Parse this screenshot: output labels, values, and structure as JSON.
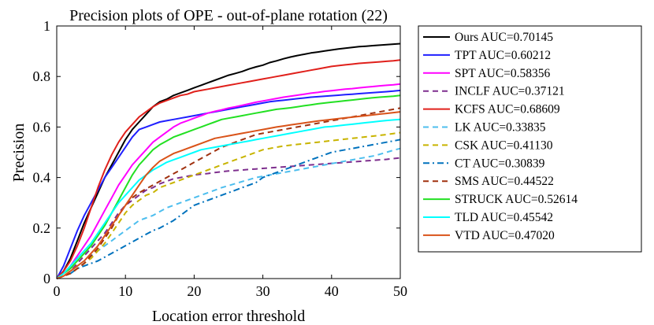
{
  "chart_data": {
    "type": "line",
    "title": "Precision plots of OPE - out-of-plane rotation (22)",
    "xlabel": "Location error threshold",
    "ylabel": "Precision",
    "xlim": [
      0,
      50
    ],
    "ylim": [
      0,
      1
    ],
    "xticks": [
      "0",
      "10",
      "20",
      "30",
      "40",
      "50"
    ],
    "yticks": [
      "0",
      "0.2",
      "0.4",
      "0.6",
      "0.8",
      "1"
    ],
    "legend_position": "outside-right",
    "x": [
      0,
      1,
      2,
      3,
      4,
      5,
      6,
      7,
      8,
      9,
      10,
      11,
      12,
      13,
      14,
      15,
      16,
      17,
      18,
      19,
      20,
      21,
      22,
      23,
      24,
      25,
      26,
      27,
      28,
      29,
      30,
      31,
      32,
      33,
      34,
      35,
      36,
      37,
      38,
      39,
      40,
      41,
      42,
      43,
      44,
      45,
      46,
      47,
      48,
      49,
      50
    ],
    "series": [
      {
        "name": "Ours",
        "label": "Ours AUC=0.70145",
        "color": "#000000",
        "dash": "solid",
        "values": [
          0.0,
          0.03,
          0.08,
          0.15,
          0.22,
          0.28,
          0.34,
          0.4,
          0.45,
          0.5,
          0.55,
          0.59,
          0.62,
          0.65,
          0.68,
          0.7,
          0.71,
          0.725,
          0.735,
          0.745,
          0.755,
          0.765,
          0.775,
          0.785,
          0.795,
          0.805,
          0.812,
          0.82,
          0.83,
          0.838,
          0.845,
          0.855,
          0.862,
          0.87,
          0.877,
          0.883,
          0.888,
          0.893,
          0.897,
          0.901,
          0.905,
          0.909,
          0.912,
          0.915,
          0.918,
          0.92,
          0.922,
          0.924,
          0.926,
          0.928,
          0.93
        ]
      },
      {
        "name": "TPT",
        "label": "TPT AUC=0.60212",
        "color": "#1f1fff",
        "dash": "solid",
        "values": [
          0.0,
          0.05,
          0.12,
          0.19,
          0.25,
          0.3,
          0.35,
          0.4,
          0.44,
          0.48,
          0.52,
          0.56,
          0.59,
          0.6,
          0.61,
          0.62,
          0.625,
          0.63,
          0.635,
          0.64,
          0.645,
          0.65,
          0.655,
          0.66,
          0.665,
          0.67,
          0.675,
          0.68,
          0.685,
          0.69,
          0.695,
          0.7,
          0.703,
          0.706,
          0.709,
          0.712,
          0.715,
          0.718,
          0.72,
          0.722,
          0.724,
          0.726,
          0.728,
          0.73,
          0.732,
          0.734,
          0.736,
          0.738,
          0.74,
          0.742,
          0.745
        ]
      },
      {
        "name": "SPT",
        "label": "SPT AUC=0.58356",
        "color": "#ff00ff",
        "dash": "solid",
        "values": [
          0.0,
          0.02,
          0.05,
          0.09,
          0.13,
          0.17,
          0.22,
          0.27,
          0.32,
          0.37,
          0.41,
          0.45,
          0.48,
          0.51,
          0.54,
          0.56,
          0.58,
          0.6,
          0.615,
          0.625,
          0.635,
          0.645,
          0.655,
          0.662,
          0.668,
          0.675,
          0.68,
          0.686,
          0.692,
          0.698,
          0.703,
          0.708,
          0.713,
          0.718,
          0.722,
          0.726,
          0.73,
          0.734,
          0.737,
          0.741,
          0.744,
          0.747,
          0.75,
          0.752,
          0.755,
          0.758,
          0.76,
          0.763,
          0.765,
          0.767,
          0.77
        ]
      },
      {
        "name": "INCLF",
        "label": "INCLF AUC=0.37121",
        "color": "#7e2f8e",
        "dash": "dash",
        "values": [
          0.0,
          0.01,
          0.03,
          0.06,
          0.09,
          0.12,
          0.15,
          0.18,
          0.22,
          0.26,
          0.29,
          0.31,
          0.33,
          0.35,
          0.36,
          0.375,
          0.385,
          0.395,
          0.4,
          0.405,
          0.41,
          0.413,
          0.416,
          0.42,
          0.423,
          0.426,
          0.428,
          0.43,
          0.432,
          0.434,
          0.436,
          0.438,
          0.44,
          0.442,
          0.444,
          0.446,
          0.448,
          0.45,
          0.452,
          0.454,
          0.456,
          0.458,
          0.46,
          0.462,
          0.464,
          0.466,
          0.468,
          0.47,
          0.472,
          0.475,
          0.478
        ]
      },
      {
        "name": "KCFS",
        "label": "KCFS AUC=0.68609",
        "color": "#e0201b",
        "dash": "solid",
        "values": [
          0.0,
          0.03,
          0.07,
          0.13,
          0.2,
          0.28,
          0.36,
          0.43,
          0.49,
          0.54,
          0.58,
          0.61,
          0.64,
          0.66,
          0.68,
          0.695,
          0.705,
          0.715,
          0.725,
          0.73,
          0.74,
          0.745,
          0.75,
          0.755,
          0.76,
          0.765,
          0.77,
          0.775,
          0.78,
          0.785,
          0.79,
          0.795,
          0.8,
          0.805,
          0.81,
          0.815,
          0.82,
          0.825,
          0.83,
          0.835,
          0.84,
          0.843,
          0.846,
          0.849,
          0.852,
          0.854,
          0.856,
          0.858,
          0.86,
          0.862,
          0.865
        ]
      },
      {
        "name": "LK",
        "label": "LK AUC=0.33835",
        "color": "#4dbeee",
        "dash": "dash",
        "values": [
          0.0,
          0.01,
          0.03,
          0.05,
          0.07,
          0.09,
          0.11,
          0.13,
          0.15,
          0.17,
          0.19,
          0.21,
          0.23,
          0.24,
          0.25,
          0.265,
          0.28,
          0.29,
          0.3,
          0.31,
          0.32,
          0.33,
          0.34,
          0.35,
          0.36,
          0.368,
          0.376,
          0.384,
          0.392,
          0.4,
          0.405,
          0.41,
          0.415,
          0.42,
          0.425,
          0.43,
          0.435,
          0.44,
          0.445,
          0.45,
          0.455,
          0.46,
          0.465,
          0.47,
          0.475,
          0.48,
          0.485,
          0.492,
          0.5,
          0.508,
          0.515
        ]
      },
      {
        "name": "CSK",
        "label": "CSK AUC=0.41130",
        "color": "#c8b400",
        "dash": "dash",
        "values": [
          0.0,
          0.01,
          0.02,
          0.04,
          0.06,
          0.08,
          0.11,
          0.14,
          0.18,
          0.22,
          0.26,
          0.29,
          0.31,
          0.33,
          0.34,
          0.36,
          0.37,
          0.38,
          0.39,
          0.4,
          0.41,
          0.42,
          0.43,
          0.44,
          0.45,
          0.46,
          0.47,
          0.48,
          0.49,
          0.5,
          0.51,
          0.515,
          0.52,
          0.525,
          0.528,
          0.531,
          0.534,
          0.537,
          0.54,
          0.543,
          0.546,
          0.549,
          0.552,
          0.555,
          0.558,
          0.561,
          0.564,
          0.567,
          0.57,
          0.574,
          0.578
        ]
      },
      {
        "name": "CT",
        "label": "CT AUC=0.30839",
        "color": "#0072bd",
        "dash": "dashdot",
        "values": [
          0.0,
          0.01,
          0.02,
          0.04,
          0.05,
          0.06,
          0.07,
          0.085,
          0.1,
          0.115,
          0.13,
          0.145,
          0.16,
          0.175,
          0.19,
          0.2,
          0.215,
          0.23,
          0.25,
          0.27,
          0.29,
          0.3,
          0.31,
          0.32,
          0.33,
          0.34,
          0.35,
          0.36,
          0.37,
          0.38,
          0.4,
          0.41,
          0.42,
          0.43,
          0.44,
          0.45,
          0.46,
          0.47,
          0.48,
          0.49,
          0.5,
          0.505,
          0.51,
          0.515,
          0.52,
          0.525,
          0.53,
          0.535,
          0.54,
          0.545,
          0.55
        ]
      },
      {
        "name": "SMS",
        "label": "SMS AUC=0.44522",
        "color": "#a0310f",
        "dash": "dash",
        "values": [
          0.0,
          0.01,
          0.02,
          0.04,
          0.06,
          0.09,
          0.12,
          0.16,
          0.2,
          0.25,
          0.29,
          0.32,
          0.34,
          0.355,
          0.37,
          0.385,
          0.4,
          0.415,
          0.43,
          0.445,
          0.46,
          0.475,
          0.49,
          0.505,
          0.52,
          0.53,
          0.54,
          0.55,
          0.56,
          0.57,
          0.575,
          0.58,
          0.585,
          0.59,
          0.595,
          0.6,
          0.605,
          0.61,
          0.615,
          0.62,
          0.625,
          0.63,
          0.635,
          0.64,
          0.645,
          0.65,
          0.655,
          0.66,
          0.665,
          0.67,
          0.675
        ]
      },
      {
        "name": "STRUCK",
        "label": "STRUCK AUC=0.52614",
        "color": "#22e022",
        "dash": "solid",
        "values": [
          0.0,
          0.02,
          0.04,
          0.07,
          0.1,
          0.13,
          0.17,
          0.21,
          0.26,
          0.31,
          0.36,
          0.41,
          0.45,
          0.48,
          0.51,
          0.53,
          0.545,
          0.56,
          0.57,
          0.58,
          0.59,
          0.6,
          0.61,
          0.62,
          0.63,
          0.635,
          0.64,
          0.645,
          0.65,
          0.655,
          0.66,
          0.665,
          0.67,
          0.673,
          0.676,
          0.68,
          0.684,
          0.688,
          0.692,
          0.695,
          0.698,
          0.701,
          0.704,
          0.707,
          0.71,
          0.713,
          0.716,
          0.718,
          0.72,
          0.722,
          0.725
        ]
      },
      {
        "name": "TLD",
        "label": "TLD AUC=0.45542",
        "color": "#00ffff",
        "dash": "solid",
        "values": [
          0.0,
          0.02,
          0.05,
          0.08,
          0.11,
          0.14,
          0.18,
          0.22,
          0.26,
          0.3,
          0.33,
          0.36,
          0.39,
          0.41,
          0.43,
          0.445,
          0.46,
          0.47,
          0.48,
          0.49,
          0.5,
          0.51,
          0.515,
          0.52,
          0.525,
          0.53,
          0.535,
          0.54,
          0.545,
          0.55,
          0.555,
          0.56,
          0.565,
          0.57,
          0.575,
          0.58,
          0.585,
          0.59,
          0.595,
          0.6,
          0.602,
          0.605,
          0.608,
          0.611,
          0.614,
          0.617,
          0.62,
          0.623,
          0.626,
          0.628,
          0.63
        ]
      },
      {
        "name": "VTD",
        "label": "VTD AUC=0.47020",
        "color": "#d95319",
        "dash": "solid",
        "values": [
          0.0,
          0.01,
          0.03,
          0.05,
          0.07,
          0.1,
          0.13,
          0.17,
          0.21,
          0.25,
          0.29,
          0.33,
          0.37,
          0.41,
          0.44,
          0.465,
          0.48,
          0.495,
          0.505,
          0.515,
          0.525,
          0.535,
          0.545,
          0.555,
          0.56,
          0.565,
          0.57,
          0.575,
          0.58,
          0.585,
          0.59,
          0.595,
          0.6,
          0.604,
          0.608,
          0.612,
          0.616,
          0.62,
          0.624,
          0.627,
          0.63,
          0.633,
          0.636,
          0.639,
          0.642,
          0.645,
          0.648,
          0.651,
          0.654,
          0.657,
          0.66
        ]
      }
    ]
  }
}
